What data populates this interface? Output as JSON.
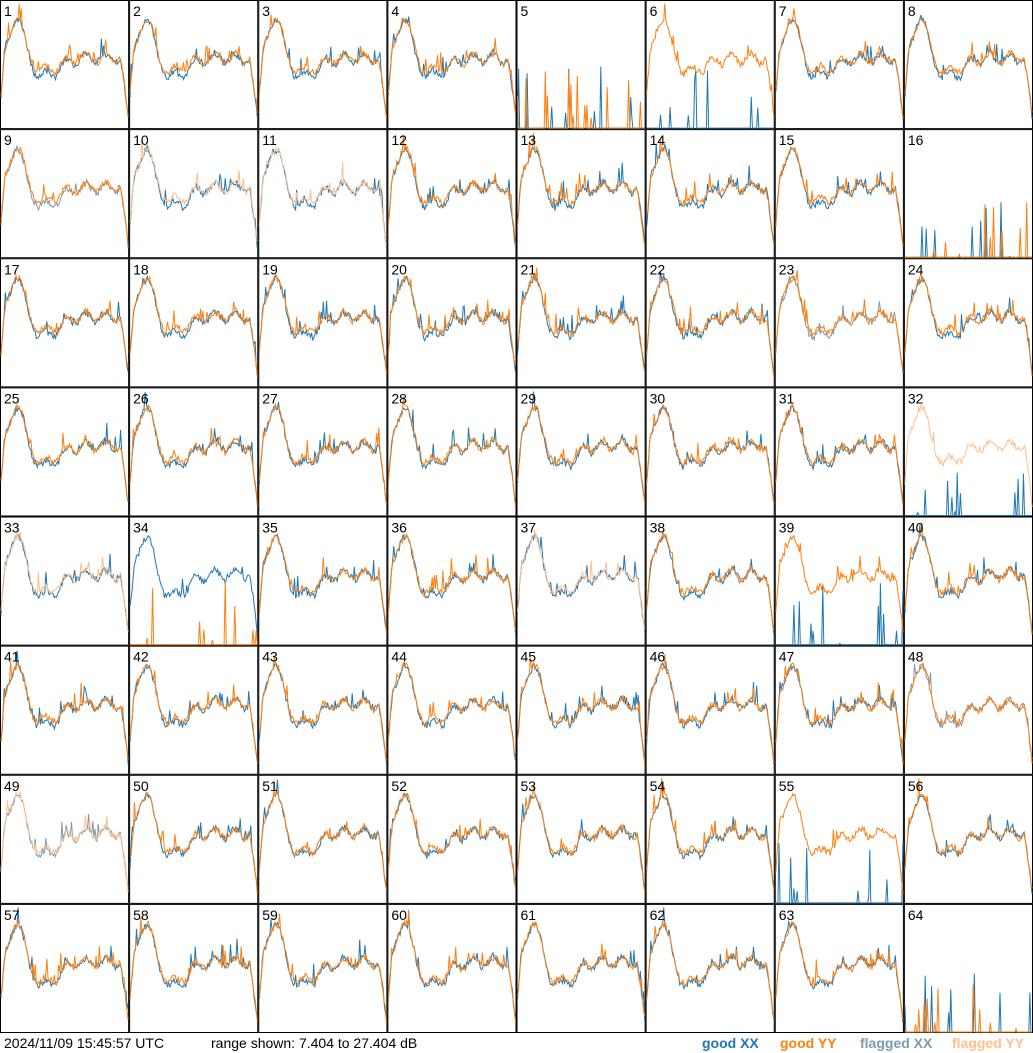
{
  "chart_data": {
    "type": "line",
    "panels_per_row": 8,
    "panel_labels": [
      "1",
      "2",
      "3",
      "4",
      "5",
      "6",
      "7",
      "8",
      "9",
      "10",
      "11",
      "12",
      "13",
      "14",
      "15",
      "16",
      "17",
      "18",
      "19",
      "20",
      "21",
      "22",
      "23",
      "24",
      "25",
      "26",
      "27",
      "28",
      "29",
      "30",
      "31",
      "32",
      "33",
      "34",
      "35",
      "36",
      "37",
      "38",
      "39",
      "40",
      "41",
      "42",
      "43",
      "44",
      "45",
      "46",
      "47",
      "48",
      "49",
      "50",
      "51",
      "52",
      "53",
      "54",
      "55",
      "56",
      "57",
      "58",
      "59",
      "60",
      "61",
      "62",
      "63",
      "64"
    ],
    "ylim": [
      7.404,
      27.404
    ],
    "ylabel": "dB",
    "series_styles": {
      "good_xx": "#1f77b4",
      "good_yy": "#ff7f0e",
      "flagged_xx": "#7b9bb5",
      "flagged_yy": "#ffc08c"
    },
    "panel_status": {
      "xx_flagged": [
        9,
        23,
        48,
        49
      ],
      "yy_flagged": [
        10,
        11,
        32,
        33,
        37,
        49
      ],
      "xx_dropout": [
        5,
        6,
        16,
        32,
        39,
        55,
        64
      ],
      "yy_dropout": [
        5,
        16,
        34,
        64
      ]
    },
    "notes_from_picture": "Each panel shows XX and YY spectra across frequency, clipped to the shown dB range."
  },
  "footer": {
    "timestamp": "2024/11/09 15:45:57 UTC",
    "range": "range shown: 7.404 to 27.404 dB",
    "legend_good_xx": "good XX",
    "legend_good_yy": "good YY",
    "legend_flagged_xx": "flagged XX",
    "legend_flagged_yy": "flagged YY",
    "colors": {
      "good_xx": "#1f77b4",
      "good_yy": "#ff7f0e",
      "flagged_xx": "#7b9bb5",
      "flagged_yy": "#ffc08c"
    }
  }
}
